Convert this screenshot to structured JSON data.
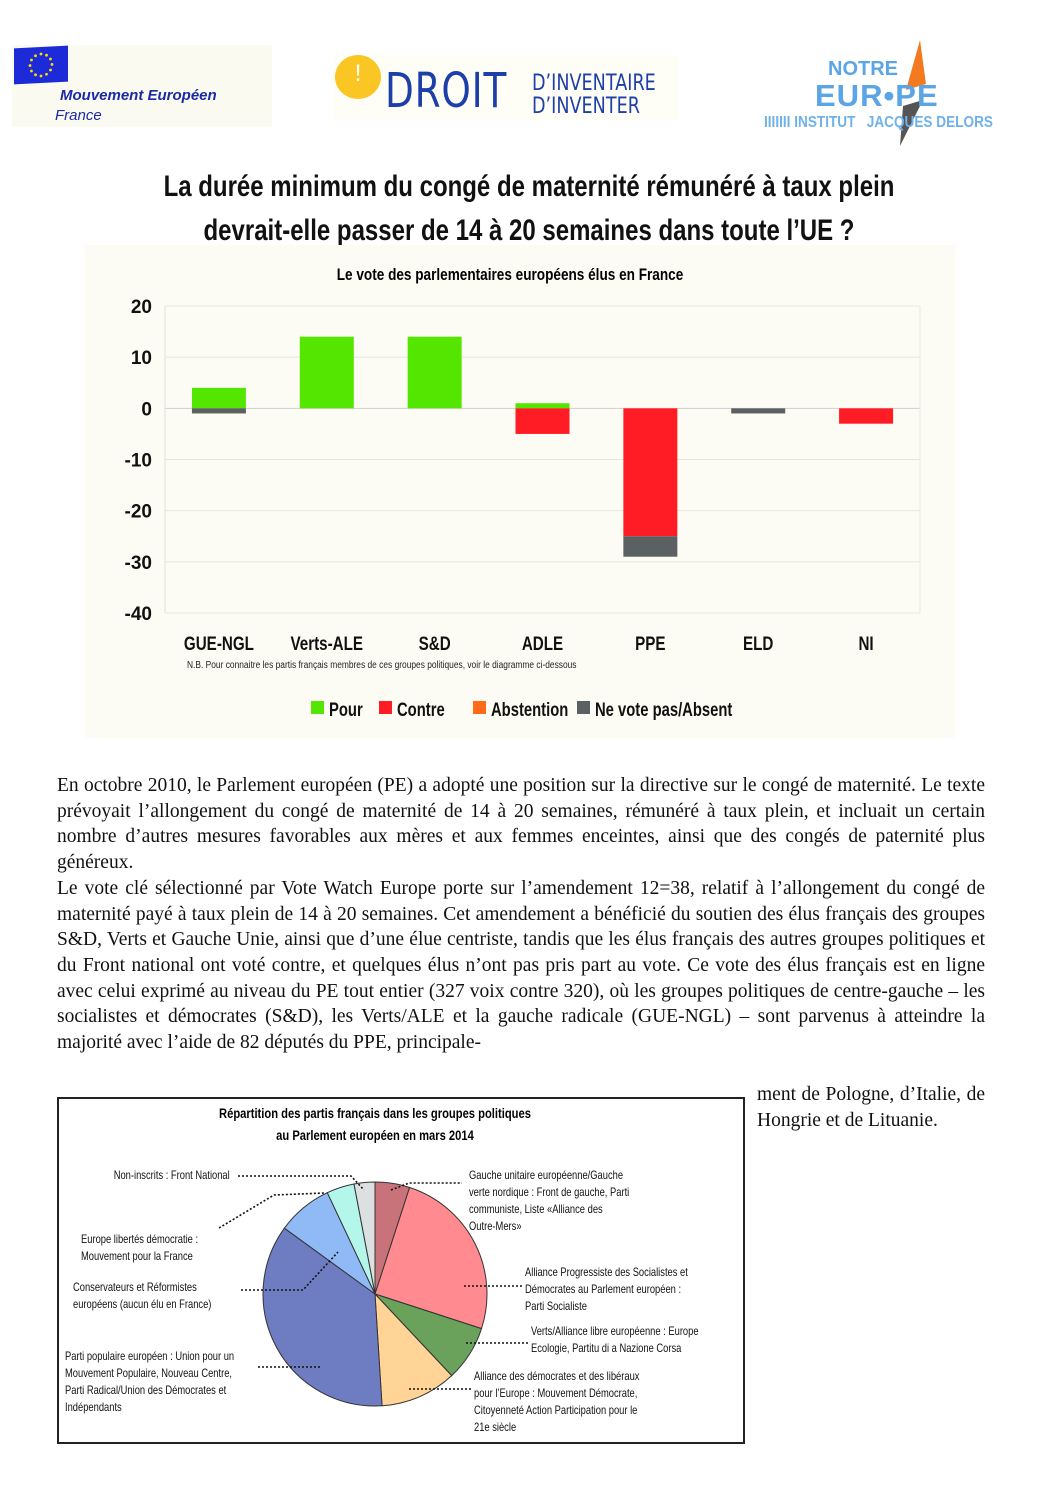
{
  "logos": {
    "mouvement_europeen": {
      "name": "Mouvement Européen",
      "country": "France"
    },
    "droit": {
      "mark": "!",
      "word": "DROIT",
      "line1": "D’INVENTAIRE",
      "line2": "D’INVENTER"
    },
    "notre_europe": {
      "line1": "NOTRE",
      "line2": "EUR•PE",
      "line3": "IIIIIII INSTITUT   JACQUES DELORS"
    }
  },
  "title": {
    "line1": "La durée minimum du congé de maternité rémunéré à taux plein",
    "line2": "devrait-elle passer de 14 à 20 semaines dans toute l’UE ?"
  },
  "colors": {
    "pour": "#55e600",
    "contre": "#ff1c24",
    "abstention": "#ff6a1a",
    "absent": "#5b6163"
  },
  "chart_data": [
    {
      "type": "bar",
      "stacked": true,
      "title": "Le vote des parlementaires européens élus en France",
      "categories": [
        "GUE-NGL",
        "Verts-ALE",
        "S&D",
        "ADLE",
        "PPE",
        "ELD",
        "NI"
      ],
      "series": [
        {
          "name": "Pour",
          "values": [
            4,
            14,
            14,
            1,
            0,
            0,
            0
          ],
          "color": "#55e600"
        },
        {
          "name": "Contre",
          "values": [
            0,
            0,
            0,
            -5,
            -25,
            0,
            -3
          ],
          "color": "#ff1c24"
        },
        {
          "name": "Abstention",
          "values": [
            0,
            0,
            0,
            0,
            0,
            0,
            0
          ],
          "color": "#ff6a1a"
        },
        {
          "name": "Ne vote pas/Absent",
          "values": [
            -1,
            0,
            0,
            0,
            -4,
            -1,
            0
          ],
          "color": "#5b6163"
        }
      ],
      "yticks": [
        20,
        10,
        0,
        -10,
        -20,
        -30,
        -40
      ],
      "ylim": [
        -40,
        20
      ],
      "grid": true,
      "legend": "bottom",
      "note": "N.B. Pour connaitre les partis français membres de ces groupes politiques, voir le diagramme ci-dessous"
    },
    {
      "type": "pie",
      "title_line1": "Répartition des partis français dans les groupes politiques",
      "title_line2": "au Parlement européen en mars 2014",
      "slices": [
        {
          "label": [
            "Gauche unitaire européenne/Gauche",
            "verte nordique : Front de gauche, Parti",
            "communiste, Liste «Alliance des",
            "Outre-Mers»"
          ],
          "value": 5,
          "color": "#c8737a"
        },
        {
          "label": [
            "Alliance Progressiste des Socialistes et",
            "Démocrates au Parlement européen :",
            "Parti Socialiste"
          ],
          "value": 25,
          "color": "#ff8a90"
        },
        {
          "label": [
            "Verts/Alliance libre européenne : Europe",
            "Ecologie, Partitu di a Nazione Corsa"
          ],
          "value": 8,
          "color": "#6aa25b"
        },
        {
          "label": [
            "Alliance des démocrates et des libéraux",
            "pour l’Europe : Mouvement Démocrate,",
            "Citoyenneté Action Participation pour le",
            "21e siècle"
          ],
          "value": 11,
          "color": "#ffd496"
        },
        {
          "label": [
            "Parti populaire européen : Union pour un",
            "Mouvement Populaire, Nouveau Centre,",
            "Parti Radical/Union des Démocrates et",
            "Indépendants"
          ],
          "value": 36,
          "color": "#6e7cc2"
        },
        {
          "label": [
            "Conservateurs et Réformistes",
            "européens (aucun élu en France)"
          ],
          "value": 8,
          "color": "#90baf6"
        },
        {
          "label": [
            "Europe libertés démocratie :",
            "Mouvement pour la France"
          ],
          "value": 4,
          "color": "#b4f6ea"
        },
        {
          "label": [
            "Non-inscrits : Front National"
          ],
          "value": 3,
          "color": "#dde0e1"
        }
      ]
    }
  ],
  "body": {
    "p1": "En octobre 2010, le Parlement européen (PE) a adopté une position sur la directive sur le congé de maternité. Le texte prévoyait l’allongement du congé de maternité de 14 à 20 semaines, rémunéré à taux plein, et incluait un certain nombre d’autres mesures favorables aux mères et aux femmes enceintes, ainsi que des congés de paternité plus généreux.",
    "p2": "Le vote clé sélectionné par Vote Watch Europe porte sur l’amendement 12=38, relatif à l’allongement du congé de maternité payé à taux plein de 14 à 20 semaines. Cet amendement a bénéficié du soutien des élus français des groupes S&D, Verts et Gauche Unie, ainsi que d’une élue centriste, tandis que les élus français des autres groupes politiques et du Front national ont voté contre, et quelques élus n’ont pas pris part au vote. Ce vote des élus français est en ligne avec celui exprimé au niveau du PE tout entier (327 voix contre 320), où les groupes politiques de centre-gauche – les socialistes et démocrates (S&D), les Verts/ALE et la gauche radicale (GUE-NGL) – sont parvenus à atteindre la majorité avec l’aide de 82 députés du PPE, principale-",
    "p2_tail": "ment de Pologne, d’Italie, de Hongrie et de Lituanie."
  }
}
